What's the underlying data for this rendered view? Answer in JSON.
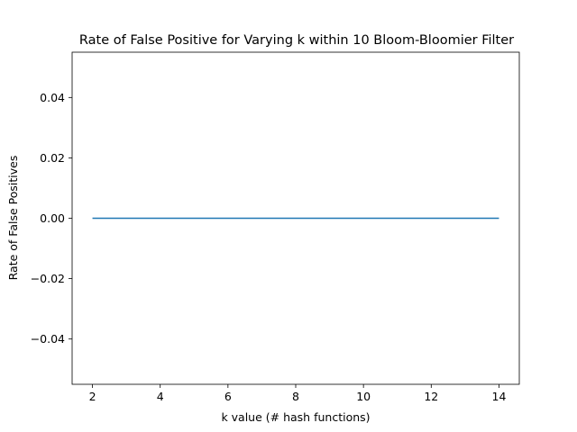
{
  "chart_data": {
    "type": "line",
    "title": "Rate of False Positive for Varying k within 10 Bloom-Bloomier Filter",
    "xlabel": "k value (# hash functions)",
    "ylabel": "Rate of False Positives",
    "xlim": [
      1.4,
      14.6
    ],
    "ylim": [
      -0.055,
      0.055
    ],
    "x_ticks": [
      2,
      4,
      6,
      8,
      10,
      12,
      14
    ],
    "x_tick_labels": [
      "2",
      "4",
      "6",
      "8",
      "10",
      "12",
      "14"
    ],
    "y_ticks": [
      -0.04,
      -0.02,
      0.0,
      0.02,
      0.04
    ],
    "y_tick_labels": [
      "−0.04",
      "−0.02",
      "0.00",
      "0.02",
      "0.04"
    ],
    "grid": false,
    "series": [
      {
        "color": "#1f77b4",
        "x": [
          2,
          3,
          4,
          5,
          6,
          7,
          8,
          9,
          10,
          11,
          12,
          13,
          14
        ],
        "y": [
          0,
          0,
          0,
          0,
          0,
          0,
          0,
          0,
          0,
          0,
          0,
          0,
          0
        ]
      }
    ]
  }
}
